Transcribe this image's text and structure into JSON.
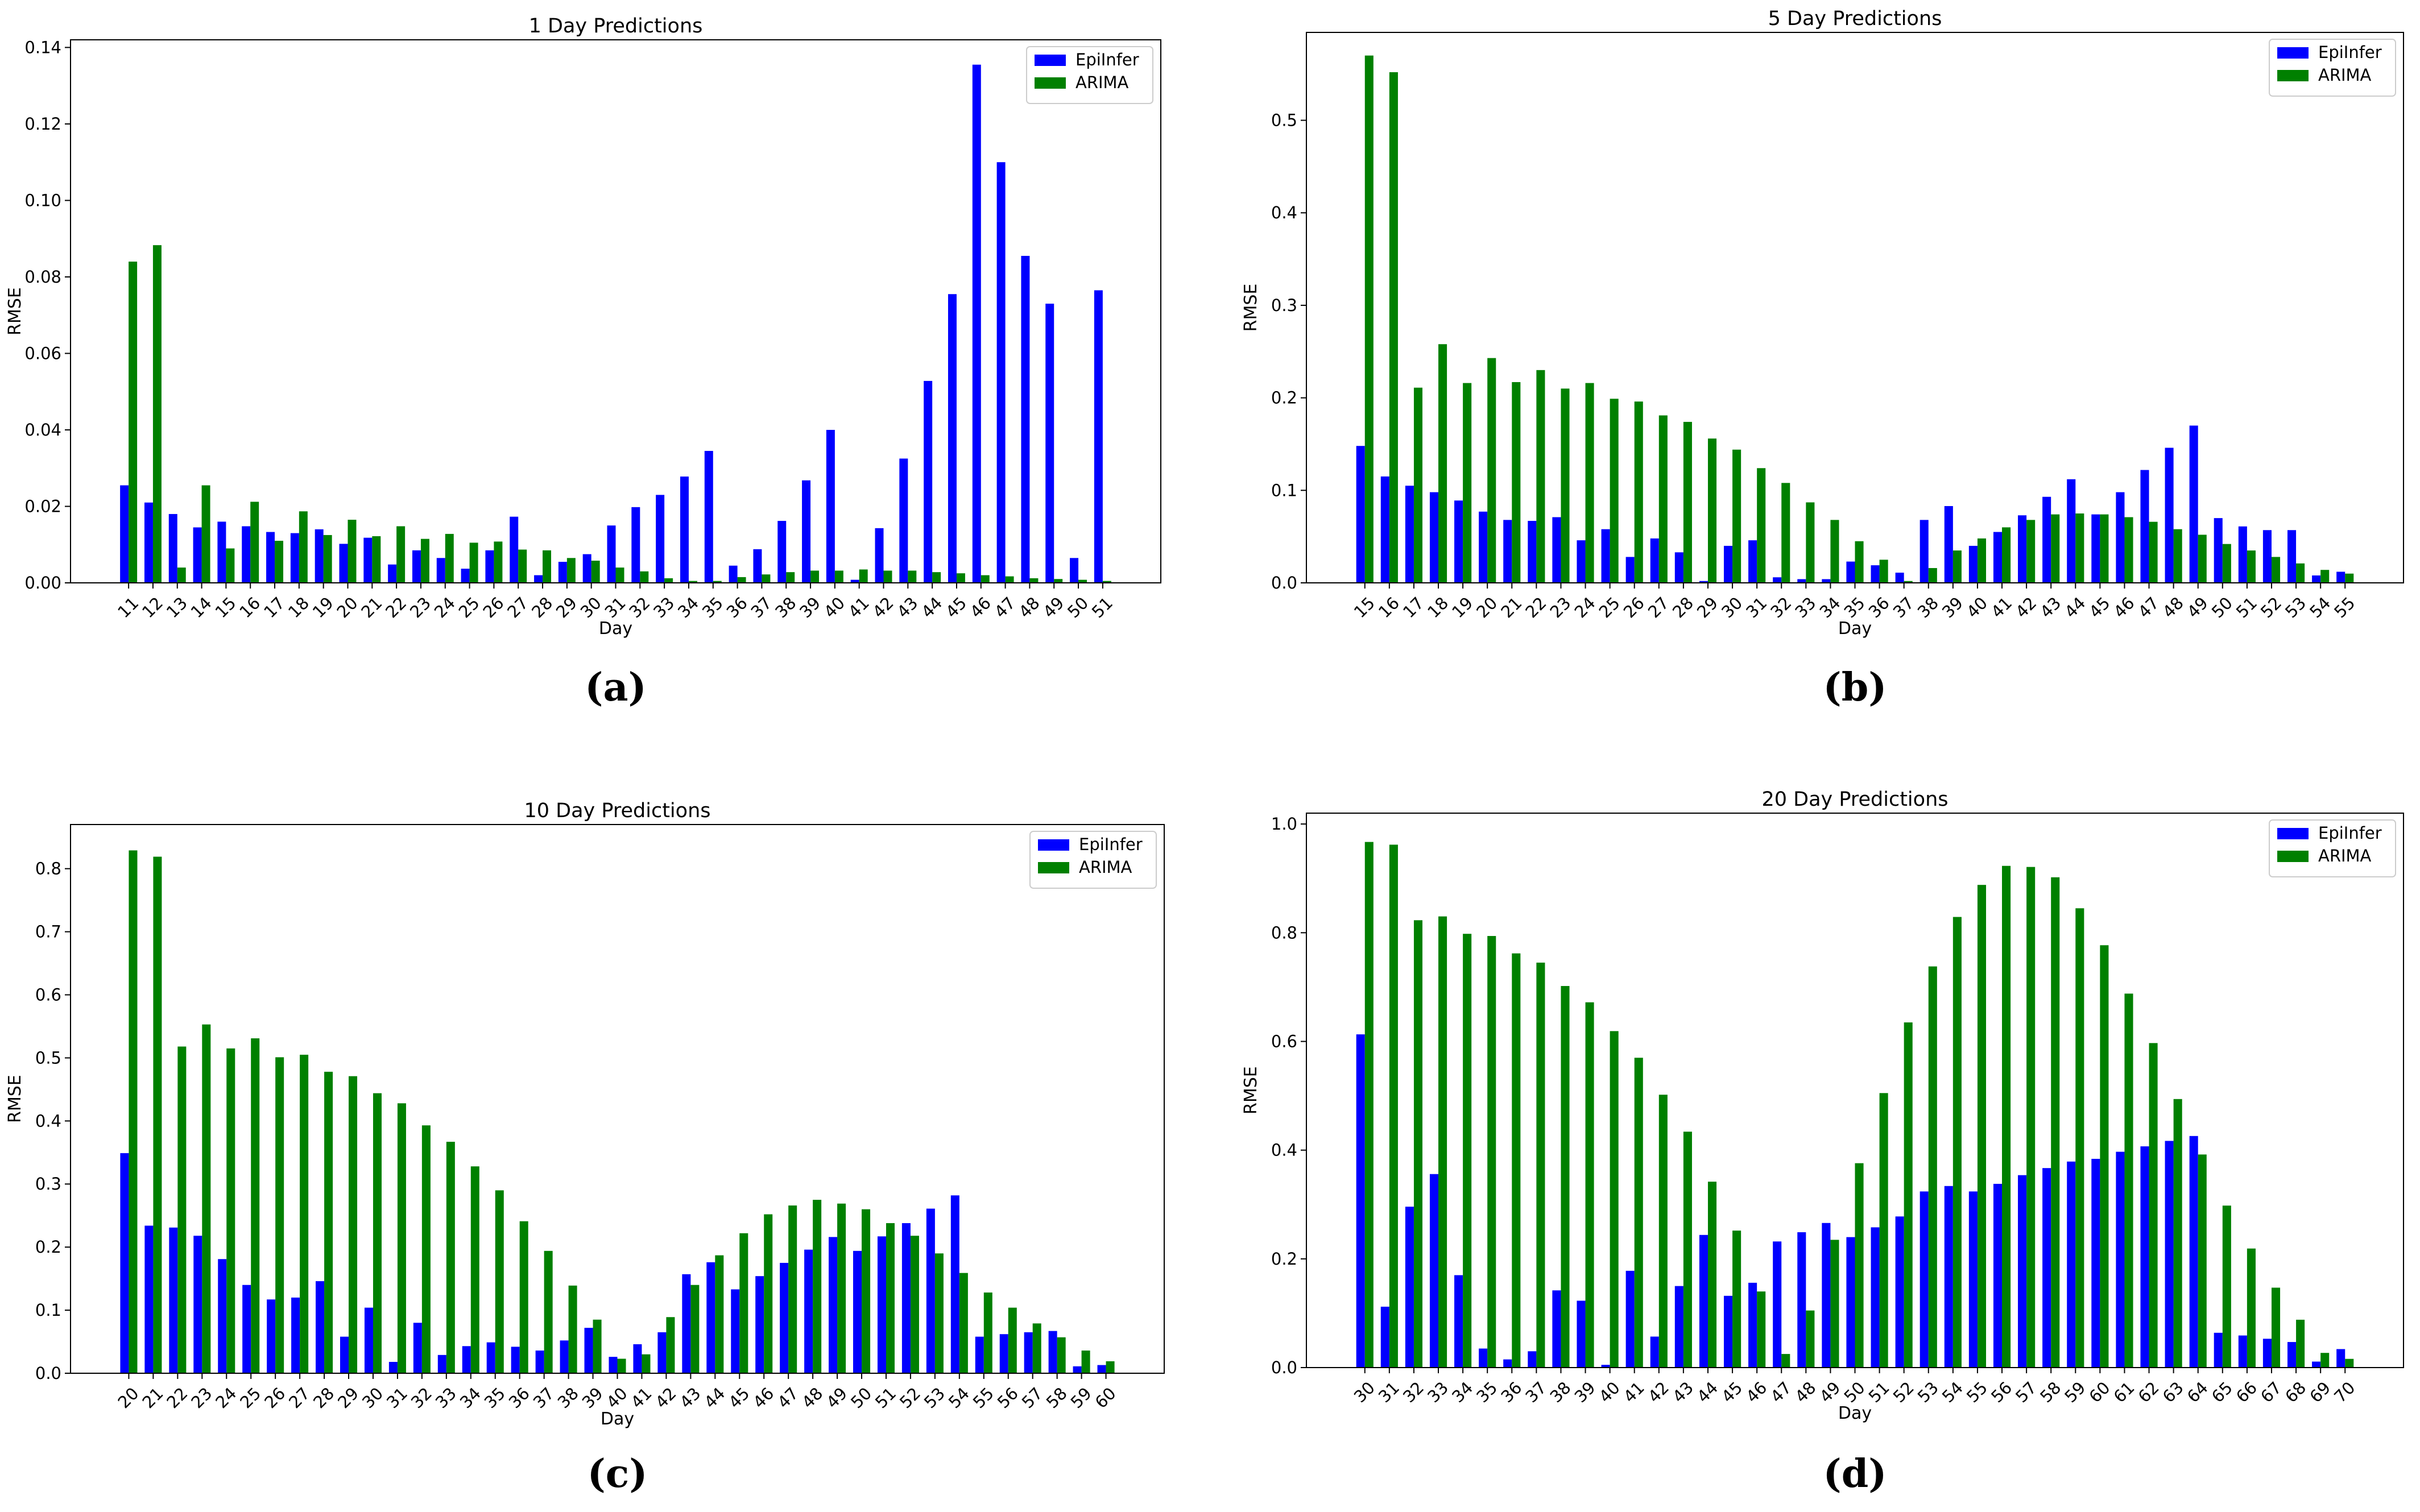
{
  "colors": {
    "epiinfer": "#0000ff",
    "arima": "#008000",
    "axis": "#000000",
    "background": "#ffffff"
  },
  "chart_data": [
    {
      "type": "bar",
      "title": "1 Day Predictions",
      "xlabel": "Day",
      "ylabel": "RMSE",
      "caption": "(a)",
      "categories": [
        "11",
        "12",
        "13",
        "14",
        "15",
        "16",
        "17",
        "18",
        "19",
        "20",
        "21",
        "22",
        "23",
        "24",
        "25",
        "26",
        "27",
        "28",
        "29",
        "30",
        "31",
        "32",
        "33",
        "34",
        "35",
        "36",
        "37",
        "38",
        "39",
        "40",
        "41",
        "42",
        "43",
        "44",
        "45",
        "46",
        "47",
        "48",
        "49",
        "50",
        "51"
      ],
      "ylim": [
        0,
        0.142
      ],
      "yticks": [
        0,
        0.02,
        0.04,
        0.06,
        0.08,
        0.1,
        0.12,
        0.14
      ],
      "ytick_labels": [
        "0.00",
        "0.02",
        "0.04",
        "0.06",
        "0.08",
        "0.10",
        "0.12",
        "0.14"
      ],
      "legend": "top-right",
      "series": [
        {
          "name": "EpiInfer",
          "values": [
            0.0255,
            0.021,
            0.018,
            0.0145,
            0.016,
            0.0148,
            0.0133,
            0.013,
            0.014,
            0.0102,
            0.0118,
            0.0048,
            0.0085,
            0.0065,
            0.0037,
            0.0085,
            0.0173,
            0.002,
            0.0055,
            0.0075,
            0.015,
            0.0198,
            0.023,
            0.0278,
            0.0345,
            0.0045,
            0.0088,
            0.0162,
            0.0268,
            0.04,
            0.0008,
            0.0143,
            0.0325,
            0.0528,
            0.0755,
            0.1355,
            0.11,
            0.0855,
            0.073,
            0.0065,
            0.0765
          ]
        },
        {
          "name": "ARIMA",
          "values": [
            0.084,
            0.0883,
            0.004,
            0.0255,
            0.009,
            0.0212,
            0.011,
            0.0187,
            0.0125,
            0.0165,
            0.0122,
            0.0148,
            0.0115,
            0.0128,
            0.0105,
            0.0108,
            0.0087,
            0.0085,
            0.0065,
            0.0058,
            0.004,
            0.003,
            0.0012,
            0.0005,
            0.0005,
            0.0015,
            0.0022,
            0.0028,
            0.0032,
            0.0032,
            0.0035,
            0.0032,
            0.0032,
            0.0028,
            0.0025,
            0.002,
            0.0017,
            0.0012,
            0.001,
            0.0008,
            0.0005
          ]
        }
      ]
    },
    {
      "type": "bar",
      "title": "5 Day Predictions",
      "xlabel": "Day",
      "ylabel": "RMSE",
      "caption": "(b)",
      "categories": [
        "15",
        "16",
        "17",
        "18",
        "19",
        "20",
        "21",
        "22",
        "23",
        "24",
        "25",
        "26",
        "27",
        "28",
        "29",
        "30",
        "31",
        "32",
        "33",
        "34",
        "35",
        "36",
        "37",
        "38",
        "39",
        "40",
        "41",
        "42",
        "43",
        "44",
        "45",
        "46",
        "47",
        "48",
        "49",
        "50",
        "51",
        "52",
        "53",
        "54",
        "55"
      ],
      "ylim": [
        0,
        0.595
      ],
      "yticks": [
        0,
        0.1,
        0.2,
        0.3,
        0.4,
        0.5
      ],
      "ytick_labels": [
        "0.0",
        "0.1",
        "0.2",
        "0.3",
        "0.4",
        "0.5"
      ],
      "legend": "top-right",
      "series": [
        {
          "name": "EpiInfer",
          "values": [
            0.148,
            0.115,
            0.105,
            0.098,
            0.089,
            0.077,
            0.068,
            0.067,
            0.071,
            0.046,
            0.058,
            0.028,
            0.048,
            0.033,
            0.002,
            0.04,
            0.046,
            0.006,
            0.004,
            0.004,
            0.023,
            0.019,
            0.011,
            0.068,
            0.083,
            0.04,
            0.055,
            0.073,
            0.093,
            0.112,
            0.074,
            0.098,
            0.122,
            0.146,
            0.17,
            0.07,
            0.061,
            0.057,
            0.057,
            0.008,
            0.012
          ]
        },
        {
          "name": "ARIMA",
          "values": [
            0.57,
            0.552,
            0.211,
            0.258,
            0.216,
            0.243,
            0.217,
            0.23,
            0.21,
            0.216,
            0.199,
            0.196,
            0.181,
            0.174,
            0.156,
            0.144,
            0.124,
            0.108,
            0.087,
            0.068,
            0.045,
            0.025,
            0.002,
            0.016,
            0.035,
            0.048,
            0.06,
            0.068,
            0.074,
            0.075,
            0.074,
            0.071,
            0.066,
            0.058,
            0.052,
            0.042,
            0.035,
            0.028,
            0.021,
            0.014,
            0.01
          ]
        }
      ]
    },
    {
      "type": "bar",
      "title": "10 Day Predictions",
      "xlabel": "Day",
      "ylabel": "RMSE",
      "caption": "(c)",
      "categories": [
        "20",
        "21",
        "22",
        "23",
        "24",
        "25",
        "26",
        "27",
        "28",
        "29",
        "30",
        "31",
        "32",
        "33",
        "34",
        "35",
        "36",
        "37",
        "38",
        "39",
        "40",
        "41",
        "42",
        "43",
        "44",
        "45",
        "46",
        "47",
        "48",
        "49",
        "50",
        "51",
        "52",
        "53",
        "54",
        "55",
        "56",
        "57",
        "58",
        "59",
        "60"
      ],
      "ylim": [
        0,
        0.87
      ],
      "yticks": [
        0,
        0.1,
        0.2,
        0.3,
        0.4,
        0.5,
        0.6,
        0.7,
        0.8
      ],
      "ytick_labels": [
        "0.0",
        "0.1",
        "0.2",
        "0.3",
        "0.4",
        "0.5",
        "0.6",
        "0.7",
        "0.8"
      ],
      "legend": "top-right",
      "series": [
        {
          "name": "EpiInfer",
          "values": [
            0.349,
            0.234,
            0.231,
            0.218,
            0.181,
            0.14,
            0.117,
            0.12,
            0.146,
            0.058,
            0.104,
            0.018,
            0.08,
            0.029,
            0.043,
            0.049,
            0.042,
            0.036,
            0.052,
            0.072,
            0.026,
            0.046,
            0.065,
            0.157,
            0.176,
            0.133,
            0.154,
            0.175,
            0.196,
            0.216,
            0.194,
            0.217,
            0.238,
            0.261,
            0.282,
            0.058,
            0.062,
            0.065,
            0.067,
            0.011,
            0.013
          ]
        },
        {
          "name": "ARIMA",
          "values": [
            0.829,
            0.819,
            0.518,
            0.553,
            0.515,
            0.531,
            0.501,
            0.505,
            0.478,
            0.471,
            0.444,
            0.428,
            0.393,
            0.367,
            0.328,
            0.29,
            0.241,
            0.194,
            0.139,
            0.085,
            0.023,
            0.03,
            0.089,
            0.14,
            0.187,
            0.222,
            0.252,
            0.266,
            0.275,
            0.269,
            0.26,
            0.238,
            0.218,
            0.19,
            0.159,
            0.128,
            0.104,
            0.079,
            0.057,
            0.036,
            0.019
          ]
        }
      ]
    },
    {
      "type": "bar",
      "title": "20 Day Predictions",
      "xlabel": "Day",
      "ylabel": "RMSE",
      "caption": "(d)",
      "categories": [
        "30",
        "31",
        "32",
        "33",
        "34",
        "35",
        "36",
        "37",
        "38",
        "39",
        "40",
        "41",
        "42",
        "43",
        "44",
        "45",
        "46",
        "47",
        "48",
        "49",
        "50",
        "51",
        "52",
        "53",
        "54",
        "55",
        "56",
        "57",
        "58",
        "59",
        "60",
        "61",
        "62",
        "63",
        "64",
        "65",
        "66",
        "67",
        "68",
        "69",
        "70"
      ],
      "ylim": [
        0,
        1.02
      ],
      "yticks": [
        0,
        0.2,
        0.4,
        0.6,
        0.8,
        1.0
      ],
      "ytick_labels": [
        "0.0",
        "0.2",
        "0.4",
        "0.6",
        "0.8",
        "1.0"
      ],
      "legend": "top-right",
      "series": [
        {
          "name": "EpiInfer",
          "values": [
            0.613,
            0.112,
            0.296,
            0.356,
            0.17,
            0.035,
            0.015,
            0.03,
            0.142,
            0.123,
            0.005,
            0.178,
            0.057,
            0.15,
            0.244,
            0.132,
            0.156,
            0.232,
            0.249,
            0.266,
            0.24,
            0.258,
            0.278,
            0.324,
            0.334,
            0.324,
            0.338,
            0.354,
            0.367,
            0.379,
            0.384,
            0.397,
            0.407,
            0.417,
            0.426,
            0.064,
            0.059,
            0.053,
            0.047,
            0.011,
            0.034
          ]
        },
        {
          "name": "ARIMA",
          "values": [
            0.967,
            0.962,
            0.823,
            0.83,
            0.798,
            0.794,
            0.762,
            0.745,
            0.702,
            0.672,
            0.619,
            0.57,
            0.502,
            0.434,
            0.342,
            0.252,
            0.14,
            0.025,
            0.105,
            0.235,
            0.376,
            0.505,
            0.635,
            0.738,
            0.829,
            0.888,
            0.923,
            0.921,
            0.902,
            0.845,
            0.777,
            0.688,
            0.597,
            0.494,
            0.392,
            0.298,
            0.219,
            0.147,
            0.088,
            0.027,
            0.016
          ]
        }
      ]
    }
  ]
}
